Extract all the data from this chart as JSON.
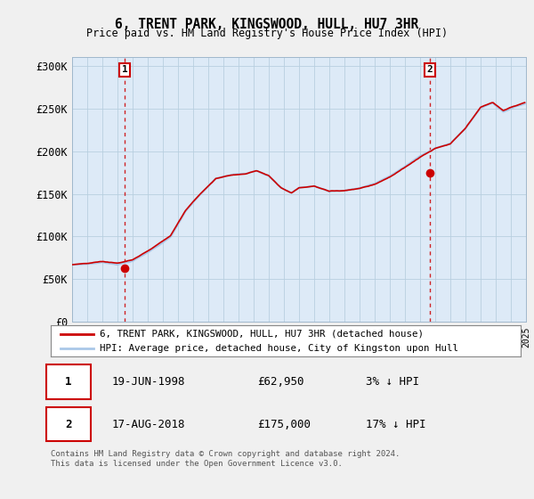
{
  "title": "6, TRENT PARK, KINGSWOOD, HULL, HU7 3HR",
  "subtitle": "Price paid vs. HM Land Registry's House Price Index (HPI)",
  "ylim": [
    0,
    310000
  ],
  "yticks": [
    0,
    50000,
    100000,
    150000,
    200000,
    250000,
    300000
  ],
  "ytick_labels": [
    "£0",
    "£50K",
    "£100K",
    "£150K",
    "£200K",
    "£250K",
    "£300K"
  ],
  "x_start_year": 1995,
  "x_end_year": 2025,
  "hpi_color": "#aac8e8",
  "price_color": "#cc0000",
  "sale1_year": 1998.47,
  "sale1_price": 62950,
  "sale1_label": "1",
  "sale2_year": 2018.63,
  "sale2_price": 175000,
  "sale2_label": "2",
  "legend_line1": "6, TRENT PARK, KINGSWOOD, HULL, HU7 3HR (detached house)",
  "legend_line2": "HPI: Average price, detached house, City of Kingston upon Hull",
  "table_row1_date": "19-JUN-1998",
  "table_row1_price": "£62,950",
  "table_row1_hpi": "3% ↓ HPI",
  "table_row2_date": "17-AUG-2018",
  "table_row2_price": "£175,000",
  "table_row2_hpi": "17% ↓ HPI",
  "footer": "Contains HM Land Registry data © Crown copyright and database right 2024.\nThis data is licensed under the Open Government Licence v3.0.",
  "bg_color": "#f0f0f0",
  "plot_bg_color": "#ddeaf7",
  "grid_color": "#b8cfe0"
}
